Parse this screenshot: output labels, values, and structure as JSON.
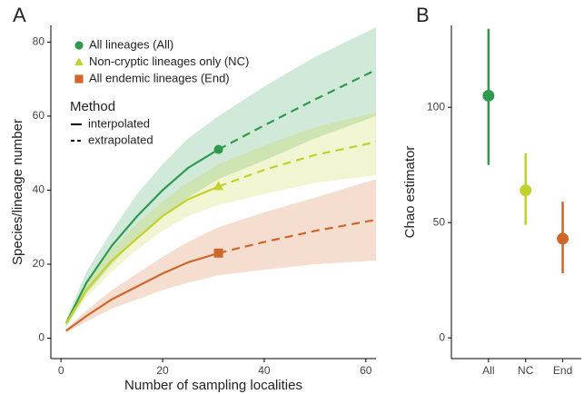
{
  "chart_data": [
    {
      "type": "rarefaction",
      "title": "A",
      "xlabel": "Number of sampling localities",
      "ylabel": "Species/lineage number",
      "x": [
        1,
        5,
        10,
        15,
        20,
        25,
        31,
        40,
        50,
        62
      ],
      "observed_x": 31,
      "xlim": [
        -2,
        62
      ],
      "xticks": [
        0,
        20,
        40,
        60
      ],
      "ylim": [
        -5.5,
        84.5
      ],
      "yticks": [
        0,
        20,
        40,
        60,
        80
      ],
      "legend_title": "Method",
      "methods": [
        "interpolated",
        "extrapolated"
      ],
      "series": [
        {
          "name": "All lineages (All)",
          "color": "#2f9a4c",
          "marker": "circle",
          "values": [
            4,
            15,
            25,
            33,
            40,
            46,
            51,
            57.5,
            64.5,
            72.5
          ],
          "lower": [
            3,
            12,
            20,
            27,
            33,
            38,
            43,
            48,
            54,
            60
          ],
          "upper": [
            5,
            18,
            29,
            39,
            47,
            54,
            60,
            68,
            76,
            84
          ]
        },
        {
          "name": "Non-cryptic lineages only (NC)",
          "color": "#c3d12e",
          "marker": "triangle",
          "values": [
            4,
            13,
            21,
            27,
            33,
            37.5,
            41,
            45.5,
            49.5,
            53
          ],
          "lower": [
            3,
            11,
            18,
            24,
            29,
            33,
            36,
            39,
            42,
            44
          ],
          "upper": [
            5,
            15,
            24,
            31,
            37,
            42,
            47,
            52,
            57,
            61
          ]
        },
        {
          "name": "All endemic lineages (End)",
          "color": "#d0672a",
          "marker": "square",
          "values": [
            2,
            6,
            10.5,
            14,
            17.5,
            20.5,
            23,
            26,
            29,
            32
          ],
          "lower": [
            1.5,
            4.5,
            8,
            10.5,
            13,
            15,
            17,
            18.5,
            20,
            21
          ],
          "upper": [
            2.5,
            7.5,
            13,
            17.5,
            22,
            26,
            30,
            34,
            38,
            43
          ]
        }
      ]
    },
    {
      "type": "pointrange",
      "title": "B",
      "ylabel": "Chao estimator",
      "categories": [
        "All",
        "NC",
        "End"
      ],
      "colors": [
        "#2f9a4c",
        "#c3d12e",
        "#d0672a"
      ],
      "values": [
        105,
        64,
        43
      ],
      "lower": [
        75,
        49,
        28
      ],
      "upper": [
        134,
        80,
        59
      ],
      "ylim": [
        -9,
        135.5
      ],
      "yticks": [
        0,
        50,
        100
      ]
    }
  ]
}
